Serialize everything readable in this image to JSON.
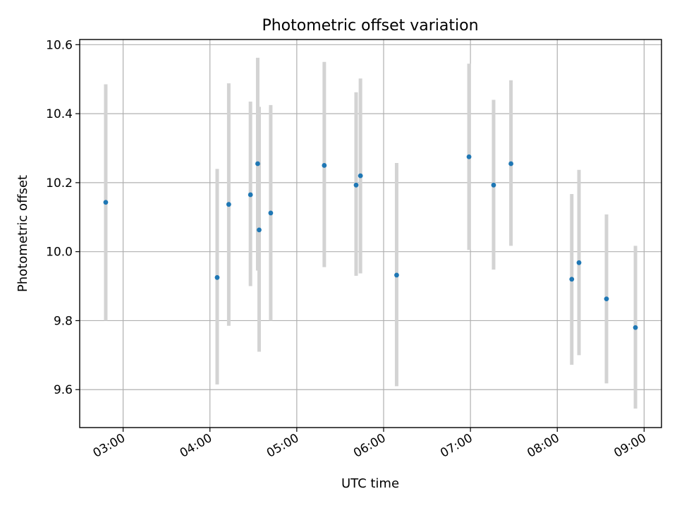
{
  "chart_data": {
    "type": "scatter",
    "title": "Photometric offset variation",
    "xlabel": "UTC time",
    "ylabel": "Photometric offset",
    "xlim": [
      "02:30",
      "09:12"
    ],
    "ylim": [
      9.49,
      10.615
    ],
    "grid": true,
    "x_ticks": [
      "03:00",
      "04:00",
      "05:00",
      "06:00",
      "07:00",
      "08:00",
      "09:00"
    ],
    "y_ticks": [
      "9.6",
      "9.8",
      "10.0",
      "10.2",
      "10.4",
      "10.6"
    ],
    "colors": {
      "point": "#1f77b4",
      "error_bar": "#d3d3d3",
      "grid": "#b0b0b0"
    },
    "points": [
      {
        "x": "02:48",
        "y": 10.143,
        "err_low": 9.8,
        "err_high": 10.485
      },
      {
        "x": "04:05",
        "y": 9.925,
        "err_low": 9.615,
        "err_high": 10.24
      },
      {
        "x": "04:13",
        "y": 10.137,
        "err_low": 9.785,
        "err_high": 10.488
      },
      {
        "x": "04:28",
        "y": 10.165,
        "err_low": 9.9,
        "err_high": 10.435
      },
      {
        "x": "04:33",
        "y": 10.255,
        "err_low": 9.945,
        "err_high": 10.562
      },
      {
        "x": "04:34",
        "y": 10.063,
        "err_low": 9.71,
        "err_high": 10.42
      },
      {
        "x": "04:42",
        "y": 10.112,
        "err_low": 9.8,
        "err_high": 10.425
      },
      {
        "x": "05:19",
        "y": 10.25,
        "err_low": 9.955,
        "err_high": 10.55
      },
      {
        "x": "05:41",
        "y": 10.193,
        "err_low": 9.93,
        "err_high": 10.462
      },
      {
        "x": "05:44",
        "y": 10.22,
        "err_low": 9.937,
        "err_high": 10.502
      },
      {
        "x": "06:09",
        "y": 9.932,
        "err_low": 9.61,
        "err_high": 10.257
      },
      {
        "x": "06:59",
        "y": 10.275,
        "err_low": 10.005,
        "err_high": 10.545
      },
      {
        "x": "07:16",
        "y": 10.193,
        "err_low": 9.948,
        "err_high": 10.44
      },
      {
        "x": "07:28",
        "y": 10.255,
        "err_low": 10.017,
        "err_high": 10.497
      },
      {
        "x": "08:10",
        "y": 9.92,
        "err_low": 9.672,
        "err_high": 10.167
      },
      {
        "x": "08:15",
        "y": 9.968,
        "err_low": 9.7,
        "err_high": 10.237
      },
      {
        "x": "08:34",
        "y": 9.863,
        "err_low": 9.618,
        "err_high": 10.108
      },
      {
        "x": "08:54",
        "y": 9.78,
        "err_low": 9.545,
        "err_high": 10.017
      }
    ]
  }
}
